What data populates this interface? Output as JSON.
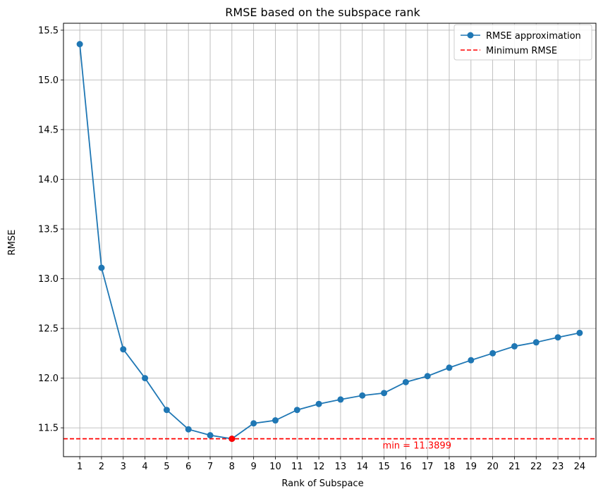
{
  "chart_data": {
    "type": "line",
    "title": "RMSE based on the subspace rank",
    "xlabel": "Rank of Subspace",
    "ylabel": "RMSE",
    "x": [
      1,
      2,
      3,
      4,
      5,
      6,
      7,
      8,
      9,
      10,
      11,
      12,
      13,
      14,
      15,
      16,
      17,
      18,
      19,
      20,
      21,
      22,
      23,
      24
    ],
    "xlim": [
      0.25,
      24.75
    ],
    "ylim": [
      11.21,
      15.57
    ],
    "yticks": [
      11.5,
      12.0,
      12.5,
      13.0,
      13.5,
      14.0,
      14.5,
      15.0,
      15.5
    ],
    "ytick_labels": [
      "11.5",
      "12.0",
      "12.5",
      "13.0",
      "13.5",
      "14.0",
      "14.5",
      "15.0",
      "15.5"
    ],
    "grid": true,
    "legend_position": "top-right",
    "series": [
      {
        "name": "RMSE approximation",
        "color": "#1f77b4",
        "marker": "circle",
        "values": [
          15.36,
          13.11,
          12.29,
          12.0,
          11.68,
          11.485,
          11.425,
          11.3899,
          11.545,
          11.575,
          11.68,
          11.74,
          11.785,
          11.825,
          11.85,
          11.96,
          12.02,
          12.105,
          12.18,
          12.25,
          12.32,
          12.36,
          12.41,
          12.455
        ]
      }
    ],
    "reference_line": {
      "name": "Minimum RMSE",
      "y": 11.3899,
      "color": "#ff0000",
      "style": "dashed"
    },
    "min_point": {
      "x": 8,
      "y": 11.3899,
      "color": "#ff0000"
    },
    "annotation": {
      "text": "min = 11.3899",
      "x": 15,
      "y": 11.3899,
      "color": "#ff0000"
    }
  }
}
